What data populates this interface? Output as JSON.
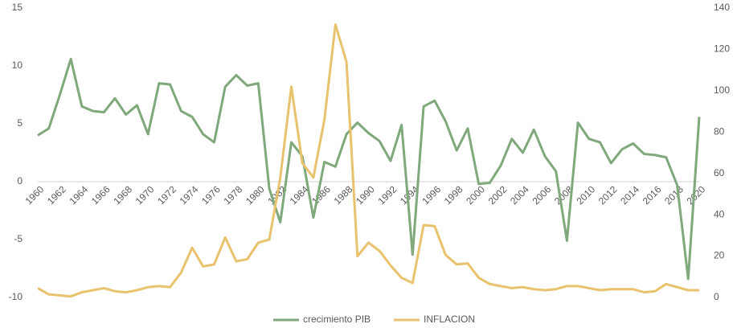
{
  "chart_data": {
    "type": "line",
    "x": [
      1960,
      1961,
      1962,
      1963,
      1964,
      1965,
      1966,
      1967,
      1968,
      1969,
      1970,
      1971,
      1972,
      1973,
      1974,
      1975,
      1976,
      1977,
      1978,
      1979,
      1980,
      1981,
      1982,
      1983,
      1984,
      1985,
      1986,
      1987,
      1988,
      1989,
      1990,
      1991,
      1992,
      1993,
      1994,
      1995,
      1996,
      1997,
      1998,
      1999,
      2000,
      2001,
      2002,
      2003,
      2004,
      2005,
      2006,
      2007,
      2008,
      2009,
      2010,
      2011,
      2012,
      2013,
      2014,
      2015,
      2016,
      2017,
      2018,
      2019,
      2020
    ],
    "xlim": [
      1960,
      2020
    ],
    "xticks": [
      1960,
      1962,
      1964,
      1966,
      1968,
      1970,
      1972,
      1974,
      1976,
      1978,
      1980,
      1982,
      1984,
      1986,
      1988,
      1990,
      1992,
      1994,
      1996,
      1998,
      2000,
      2002,
      2004,
      2006,
      2008,
      2010,
      2012,
      2014,
      2016,
      2018,
      2020
    ],
    "ylim": [
      -10,
      15
    ],
    "yticks": [
      -10,
      -5,
      0,
      5,
      10,
      15
    ],
    "y2lim": [
      0,
      140
    ],
    "y2ticks": [
      0,
      20,
      40,
      60,
      80,
      100,
      120,
      140
    ],
    "legend": "bottom",
    "series": [
      {
        "name": "crecimiento PIB",
        "color": "#7fa87b",
        "values": [
          4.0,
          4.6,
          7.5,
          10.6,
          6.5,
          6.1,
          6.0,
          7.2,
          5.8,
          6.6,
          4.1,
          8.5,
          8.4,
          6.1,
          5.6,
          4.1,
          3.4,
          8.2,
          9.2,
          8.3,
          8.5,
          -0.6,
          -3.5,
          3.4,
          2.2,
          -3.1,
          1.7,
          1.3,
          4.1,
          5.1,
          4.2,
          3.5,
          1.8,
          4.9,
          -6.3,
          6.5,
          7.0,
          5.2,
          2.7,
          4.6,
          -0.2,
          -0.1,
          1.4,
          3.7,
          2.5,
          4.5,
          2.2,
          0.9,
          -5.1,
          5.1,
          3.7,
          3.4,
          1.6,
          2.8,
          3.3,
          2.4,
          2.3,
          2.1,
          -0.3,
          -8.4,
          5.6
        ]
      },
      {
        "name": "INFLACION",
        "color": "#e8c26c",
        "axis": "y2",
        "values": [
          4.5,
          1.5,
          1,
          0.5,
          2.5,
          3.5,
          4.5,
          3,
          2.5,
          3.5,
          5,
          5.5,
          5,
          12,
          24,
          15,
          16,
          29,
          17.5,
          18.5,
          26.5,
          28,
          58,
          102,
          65,
          58,
          86,
          132,
          114,
          20,
          26.5,
          22.5,
          15.5,
          9.5,
          7,
          35,
          34.5,
          20.5,
          16,
          16.5,
          9.5,
          6.5,
          5.5,
          4.5,
          5,
          4,
          3.5,
          4,
          5.5,
          5.5,
          4.5,
          3.5,
          4,
          4,
          4,
          2.5,
          3,
          6.5,
          5,
          3.5,
          3.5
        ]
      }
    ]
  }
}
